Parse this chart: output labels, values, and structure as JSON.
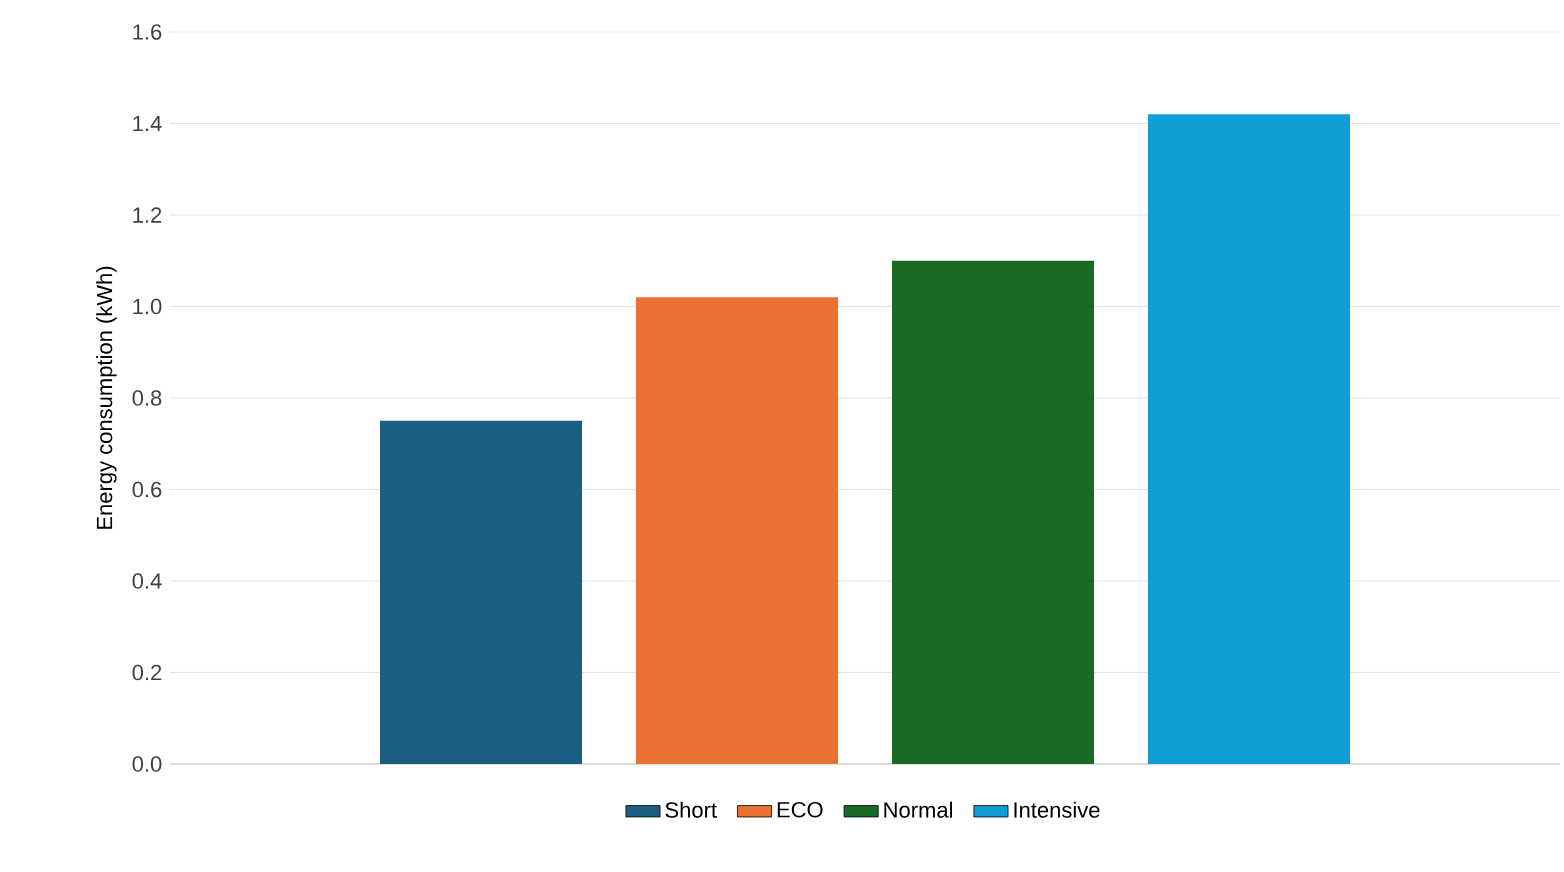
{
  "chart_data": {
    "type": "bar",
    "ylabel": "Energy consumption (kWh)",
    "categories": [
      null
    ],
    "series": [
      {
        "name": "Short",
        "color": "#1a5e82",
        "values": [
          0.75
        ]
      },
      {
        "name": "ECO",
        "color": "#e97132",
        "values": [
          1.02
        ]
      },
      {
        "name": "Normal",
        "color": "#196b24",
        "values": [
          1.1
        ]
      },
      {
        "name": "Intensive",
        "color": "#0f9ed5",
        "values": [
          1.42
        ]
      }
    ],
    "ylim": [
      0,
      1.6
    ],
    "yticks": [
      {
        "value": 0,
        "label": "0.0"
      },
      {
        "value": 0.2,
        "label": "0.2"
      },
      {
        "value": 0.4,
        "label": "0.4"
      },
      {
        "value": 0.6,
        "label": "0.6"
      },
      {
        "value": 0.8,
        "label": "0.8"
      },
      {
        "value": 1.0,
        "label": "1.0"
      },
      {
        "value": 1.2,
        "label": "1.2"
      },
      {
        "value": 1.4,
        "label": "1.4"
      },
      {
        "value": 1.6,
        "label": "1.6"
      }
    ],
    "grid": "y",
    "legend": "bottom"
  }
}
